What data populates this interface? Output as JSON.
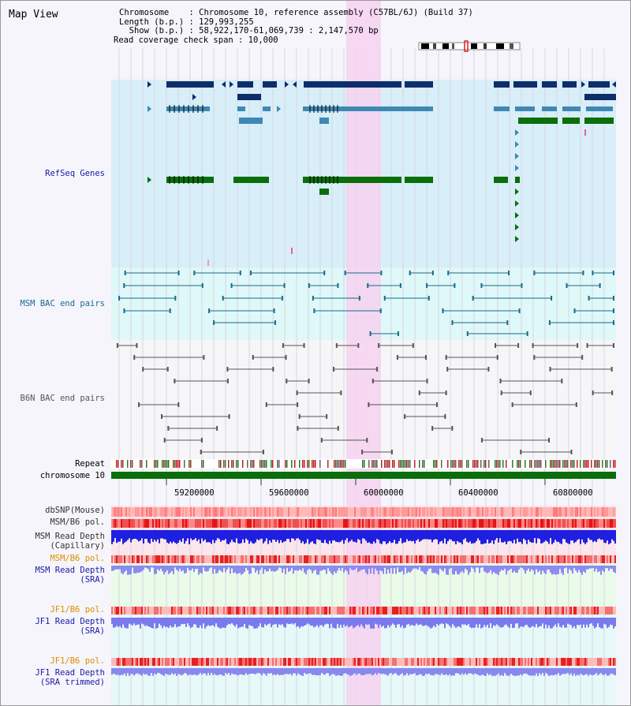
{
  "view_title": "Map View",
  "header": {
    "chromosome": "Chromosome    : Chromosome 10, reference assembly (C57BL/6J) (Build 37)",
    "length": "Length (b.p.) : 129,993,255",
    "show": "  Show (b.p.) : 58,922,170-61,069,739 : 2,147,570 bp",
    "coverage": "Read coverage check span : 10,000"
  },
  "tracks": {
    "refseq": "RefSeq Genes",
    "msm_bac": "MSM BAC end pairs",
    "b6n_bac": "B6N BAC end pairs",
    "repeat": "Repeat",
    "chromosome": "chromosome 10",
    "dbsnp": "dbSNP(Mouse)",
    "msm_pol1": "MSM/B6 pol.",
    "msm_depth_cap_1": "MSM Read Depth",
    "msm_depth_cap_2": "(Capillary)",
    "msm_pol2": "MSM/B6 pol.",
    "msm_depth_sra_1": "MSM Read Depth",
    "msm_depth_sra_2": "(SRA)",
    "jf1_pol1": "JF1/B6 pol.",
    "jf1_depth_sra_1": "JF1 Read Depth",
    "jf1_depth_sra_2": "(SRA)",
    "jf1_pol2": "JF1/B6 pol.",
    "jf1_depth_trim_1": "JF1 Read Depth",
    "jf1_depth_trim_2": "(SRA trimmed)"
  },
  "axis_ticks": [
    "59200000",
    "59600000",
    "60000000",
    "60400000",
    "60800000"
  ],
  "colors": {
    "refseq_dark": "#0d2d6b",
    "refseq_mid": "#3f88b4",
    "refseq_green": "#0a6e0a",
    "msm_bac": "#1a6a8c",
    "b6n_bac": "#555555",
    "highlight": "#f6d2f0",
    "chrom_bar": "#0a6e0a",
    "label_blue": "#1a1aa6",
    "label_orange": "#e08c00",
    "label_teal": "#1a6a8c"
  }
}
